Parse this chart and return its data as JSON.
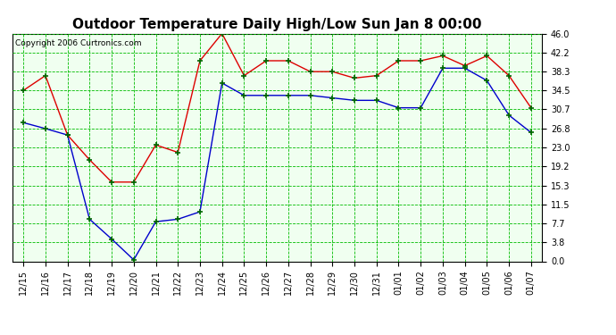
{
  "title": "Outdoor Temperature Daily High/Low Sun Jan 8 00:00",
  "copyright": "Copyright 2006 Curtronics.com",
  "labels": [
    "12/15",
    "12/16",
    "12/17",
    "12/18",
    "12/19",
    "12/20",
    "12/21",
    "12/22",
    "12/23",
    "12/24",
    "12/25",
    "12/26",
    "12/27",
    "12/28",
    "12/29",
    "12/30",
    "12/31",
    "01/01",
    "01/02",
    "01/03",
    "01/04",
    "01/05",
    "01/06",
    "01/07"
  ],
  "high": [
    34.5,
    37.5,
    25.5,
    20.5,
    16.0,
    16.0,
    23.5,
    22.0,
    40.5,
    46.0,
    37.5,
    40.5,
    40.5,
    38.3,
    38.3,
    37.0,
    37.5,
    40.5,
    40.5,
    41.5,
    39.5,
    41.5,
    37.5,
    31.0
  ],
  "low": [
    28.0,
    26.8,
    25.5,
    8.5,
    4.5,
    0.3,
    8.0,
    8.5,
    10.0,
    36.0,
    33.5,
    33.5,
    33.5,
    33.5,
    33.0,
    32.5,
    32.5,
    31.0,
    31.0,
    39.0,
    39.0,
    36.5,
    29.5,
    26.0
  ],
  "high_color": "#dd0000",
  "low_color": "#0000cc",
  "grid_color": "#00bb00",
  "background_color": "#f0fff0",
  "title_fontsize": 11,
  "ytick_labels": [
    "0.0",
    "3.8",
    "7.7",
    "11.5",
    "15.3",
    "19.2",
    "23.0",
    "26.8",
    "30.7",
    "34.5",
    "38.3",
    "42.2",
    "46.0"
  ],
  "ytick_values": [
    0.0,
    3.8,
    7.7,
    11.5,
    15.3,
    19.2,
    23.0,
    26.8,
    30.7,
    34.5,
    38.3,
    42.2,
    46.0
  ],
  "ylim": [
    0.0,
    46.0
  ],
  "fig_bg": "#ffffff"
}
